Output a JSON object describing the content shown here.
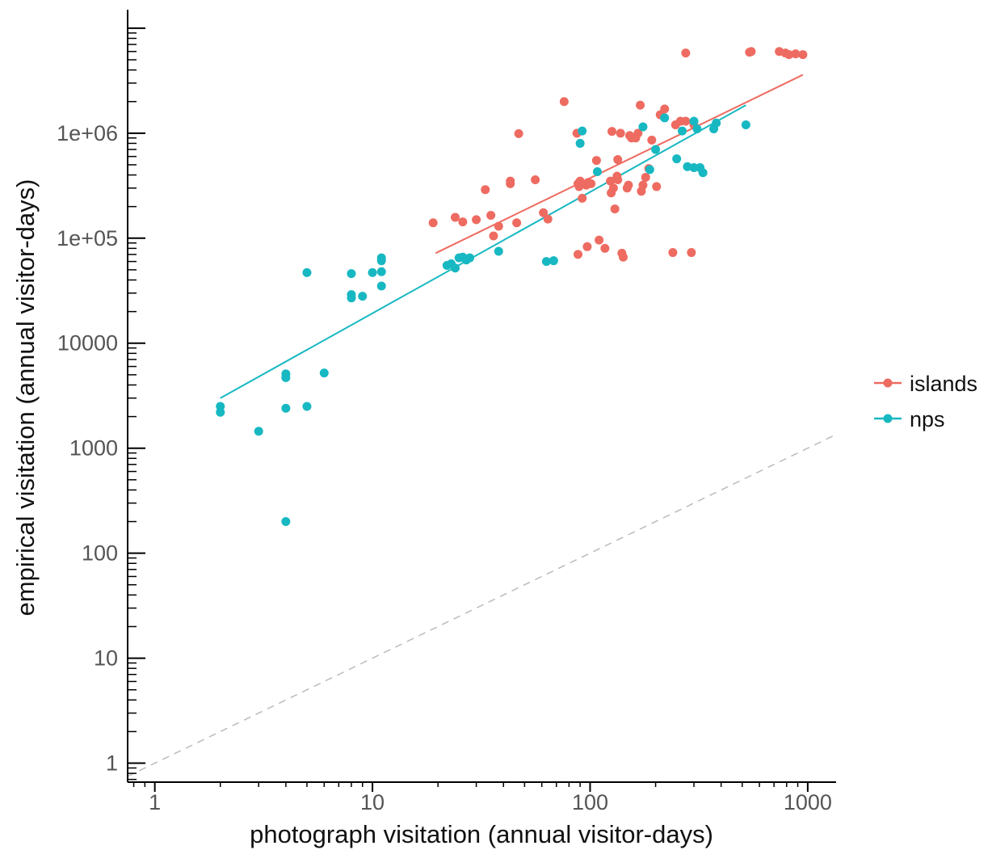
{
  "chart_data": {
    "type": "scatter",
    "xlabel": "photograph visitation (annual visitor-days)",
    "ylabel": "empirical visitation (annual visitor-days)",
    "x_scale": "log10",
    "y_scale": "log10",
    "xlim": [
      0.75,
      1350
    ],
    "ylim": [
      0.66,
      15000000
    ],
    "x_ticks": [
      {
        "value": 1,
        "label": "1"
      },
      {
        "value": 10,
        "label": "10"
      },
      {
        "value": 100,
        "label": "100"
      },
      {
        "value": 1000,
        "label": "1000"
      }
    ],
    "y_ticks": [
      {
        "value": 1,
        "label": "1"
      },
      {
        "value": 10,
        "label": "10"
      },
      {
        "value": 100,
        "label": "100"
      },
      {
        "value": 1000,
        "label": "1000"
      },
      {
        "value": 10000,
        "label": "10000"
      },
      {
        "value": 100000,
        "label": "1e+05"
      },
      {
        "value": 1000000,
        "label": "1e+06"
      },
      {
        "value": 10000000,
        "label": ""
      }
    ],
    "grid": false,
    "legend_position": "right",
    "reference_line": {
      "style": "dashed",
      "color": "#bbbbbb",
      "points": [
        [
          0.75,
          0.75
        ],
        [
          1350,
          1350
        ]
      ]
    },
    "series": [
      {
        "name": "islands",
        "color": "#ee6b61",
        "fit_line": [
          [
            19.5,
            72000
          ],
          [
            950,
            3600000
          ]
        ],
        "points": [
          [
            19,
            140000
          ],
          [
            24,
            158000
          ],
          [
            26,
            143000
          ],
          [
            30,
            150000
          ],
          [
            33,
            290000
          ],
          [
            35,
            165000
          ],
          [
            36,
            105000
          ],
          [
            38,
            130000
          ],
          [
            43,
            330000
          ],
          [
            43,
            350000
          ],
          [
            46,
            140000
          ],
          [
            47,
            990000
          ],
          [
            56,
            360000
          ],
          [
            61,
            175000
          ],
          [
            64,
            152000
          ],
          [
            76,
            2000000
          ],
          [
            87,
            1000000
          ],
          [
            88,
            70000
          ],
          [
            88,
            330000
          ],
          [
            89,
            310000
          ],
          [
            90,
            350000
          ],
          [
            92,
            240000
          ],
          [
            96,
            320000
          ],
          [
            98,
            340000
          ],
          [
            97,
            83000
          ],
          [
            101,
            330000
          ],
          [
            107,
            550000
          ],
          [
            110,
            96000
          ],
          [
            117,
            80000
          ],
          [
            124,
            350000
          ],
          [
            125,
            270000
          ],
          [
            126,
            1040000
          ],
          [
            128,
            300000
          ],
          [
            130,
            190000
          ],
          [
            133,
            390000
          ],
          [
            134,
            360000
          ],
          [
            134,
            560000
          ],
          [
            138,
            1000000
          ],
          [
            140,
            72000
          ],
          [
            142,
            66000
          ],
          [
            148,
            300000
          ],
          [
            150,
            320000
          ],
          [
            152,
            950000
          ],
          [
            155,
            900000
          ],
          [
            162,
            900000
          ],
          [
            166,
            1000000
          ],
          [
            170,
            1850000
          ],
          [
            172,
            280000
          ],
          [
            175,
            320000
          ],
          [
            180,
            380000
          ],
          [
            186,
            460000
          ],
          [
            192,
            860000
          ],
          [
            202,
            310000
          ],
          [
            210,
            1500000
          ],
          [
            220,
            1700000
          ],
          [
            240,
            73000
          ],
          [
            247,
            1200000
          ],
          [
            260,
            1300000
          ],
          [
            275,
            1300000
          ],
          [
            275,
            5800000
          ],
          [
            292,
            73000
          ],
          [
            300,
            1200000
          ],
          [
            540,
            5900000
          ],
          [
            550,
            6000000
          ],
          [
            740,
            6000000
          ],
          [
            790,
            5800000
          ],
          [
            820,
            5600000
          ],
          [
            880,
            5700000
          ],
          [
            950,
            5600000
          ]
        ]
      },
      {
        "name": "nps",
        "color": "#17b8c2",
        "fit_line": [
          [
            2,
            3000
          ],
          [
            520,
            1850000
          ]
        ],
        "points": [
          [
            2,
            2200
          ],
          [
            2,
            2500
          ],
          [
            3,
            1450
          ],
          [
            4,
            4700
          ],
          [
            4,
            5100
          ],
          [
            4,
            2400
          ],
          [
            4,
            200
          ],
          [
            5,
            47000
          ],
          [
            5,
            2500
          ],
          [
            6,
            5200
          ],
          [
            8,
            46000
          ],
          [
            8,
            29000
          ],
          [
            8,
            27000
          ],
          [
            9,
            28000
          ],
          [
            10,
            47000
          ],
          [
            11,
            48000
          ],
          [
            11,
            61000
          ],
          [
            11,
            35000
          ],
          [
            11,
            65000
          ],
          [
            22,
            55000
          ],
          [
            23,
            57000
          ],
          [
            24,
            52000
          ],
          [
            25,
            65000
          ],
          [
            26,
            66000
          ],
          [
            27,
            62000
          ],
          [
            28,
            65000
          ],
          [
            38,
            75000
          ],
          [
            63,
            60000
          ],
          [
            68,
            61000
          ],
          [
            90,
            800000
          ],
          [
            92,
            1050000
          ],
          [
            108,
            430000
          ],
          [
            175,
            1150000
          ],
          [
            188,
            450000
          ],
          [
            200,
            700000
          ],
          [
            220,
            1400000
          ],
          [
            250,
            570000
          ],
          [
            265,
            1050000
          ],
          [
            280,
            480000
          ],
          [
            300,
            1300000
          ],
          [
            300,
            470000
          ],
          [
            310,
            1100000
          ],
          [
            320,
            470000
          ],
          [
            330,
            420000
          ],
          [
            370,
            1100000
          ],
          [
            380,
            1250000
          ],
          [
            520,
            1200000
          ]
        ]
      }
    ]
  }
}
